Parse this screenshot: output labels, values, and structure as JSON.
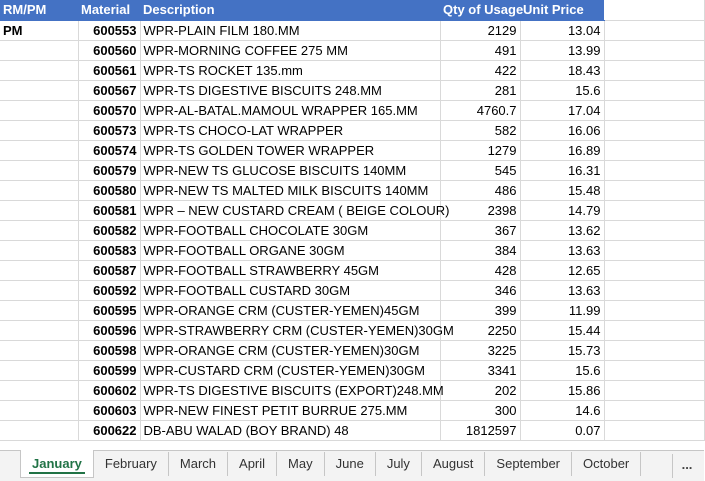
{
  "header": {
    "col1": "RM/PM",
    "col2": "Material",
    "col3": "Description",
    "col4": "Qty of Usage",
    "col5": "Unit Price"
  },
  "rows": [
    {
      "type": "PM",
      "material": "600553",
      "description": "WPR-PLAIN FILM 180.MM",
      "qty": "2129",
      "price": "13.04"
    },
    {
      "type": "",
      "material": "600560",
      "description": "WPR-MORNING COFFEE 275 MM",
      "qty": "491",
      "price": "13.99"
    },
    {
      "type": "",
      "material": "600561",
      "description": "WPR-TS ROCKET 135.mm",
      "qty": "422",
      "price": "18.43"
    },
    {
      "type": "",
      "material": "600567",
      "description": "WPR-TS DIGESTIVE BISCUITS 248.MM",
      "qty": "281",
      "price": "15.6"
    },
    {
      "type": "",
      "material": "600570",
      "description": "WPR-AL-BATAL.MAMOUL WRAPPER 165.MM",
      "qty": "4760.7",
      "price": "17.04"
    },
    {
      "type": "",
      "material": "600573",
      "description": "WPR-TS CHOCO-LAT WRAPPER",
      "qty": "582",
      "price": "16.06"
    },
    {
      "type": "",
      "material": "600574",
      "description": "WPR-TS GOLDEN TOWER WRAPPER",
      "qty": "1279",
      "price": "16.89"
    },
    {
      "type": "",
      "material": "600579",
      "description": "WPR-NEW TS GLUCOSE BISCUITS 140MM",
      "qty": "545",
      "price": "16.31"
    },
    {
      "type": "",
      "material": "600580",
      "description": "WPR-NEW TS MALTED MILK BISCUITS 140MM",
      "qty": "486",
      "price": "15.48"
    },
    {
      "type": "",
      "material": "600581",
      "description": "WPR – NEW CUSTARD CREAM ( BEIGE COLOUR)",
      "qty": "2398",
      "price": "14.79"
    },
    {
      "type": "",
      "material": "600582",
      "description": "WPR-FOOTBALL CHOCOLATE 30GM",
      "qty": "367",
      "price": "13.62"
    },
    {
      "type": "",
      "material": "600583",
      "description": "WPR-FOOTBALL ORGANE 30GM",
      "qty": "384",
      "price": "13.63"
    },
    {
      "type": "",
      "material": "600587",
      "description": "WPR-FOOTBALL STRAWBERRY 45GM",
      "qty": "428",
      "price": "12.65"
    },
    {
      "type": "",
      "material": "600592",
      "description": "WPR-FOOTBALL CUSTARD 30GM",
      "qty": "346",
      "price": "13.63"
    },
    {
      "type": "",
      "material": "600595",
      "description": "WPR-ORANGE CRM (CUSTER-YEMEN)45GM",
      "qty": "399",
      "price": "11.99"
    },
    {
      "type": "",
      "material": "600596",
      "description": "WPR-STRAWBERRY CRM (CUSTER-YEMEN)30GM",
      "qty": "2250",
      "price": "15.44"
    },
    {
      "type": "",
      "material": "600598",
      "description": "WPR-ORANGE CRM (CUSTER-YEMEN)30GM",
      "qty": "3225",
      "price": "15.73"
    },
    {
      "type": "",
      "material": "600599",
      "description": "WPR-CUSTARD CRM (CUSTER-YEMEN)30GM",
      "qty": "3341",
      "price": "15.6"
    },
    {
      "type": "",
      "material": "600602",
      "description": "WPR-TS DIGESTIVE BISCUITS (EXPORT)248.MM",
      "qty": "202",
      "price": "15.86"
    },
    {
      "type": "",
      "material": "600603",
      "description": "WPR-NEW FINEST PETIT BURRUE 275.MM",
      "qty": "300",
      "price": "14.6"
    },
    {
      "type": "",
      "material": "600622",
      "description": "DB-ABU WALAD (BOY BRAND) 48",
      "qty": "1812597",
      "price": "0.07"
    }
  ],
  "tabs": [
    "January",
    "February",
    "March",
    "April",
    "May",
    "June",
    "July",
    "August",
    "September",
    "October"
  ],
  "active_tab": "January",
  "more_label": "...",
  "colors": {
    "header_bg": "#4472c4",
    "active_tab": "#217346"
  }
}
